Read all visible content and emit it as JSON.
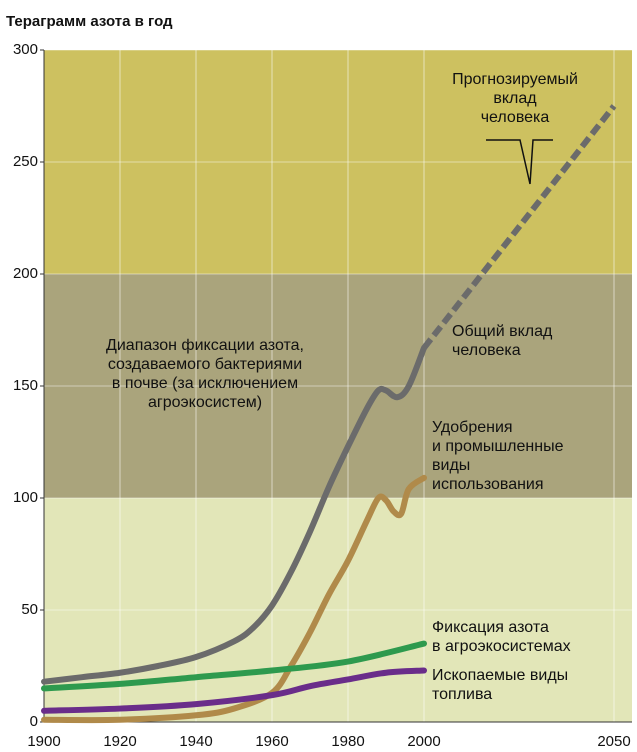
{
  "chart_data": {
    "type": "line",
    "title": "Тераграмм азота в год",
    "xlim": [
      1900,
      2050
    ],
    "xticks": [
      1900,
      1920,
      1940,
      1960,
      1980,
      2000,
      2050
    ],
    "ylim": [
      0,
      300
    ],
    "yticks": [
      0,
      50,
      100,
      150,
      200,
      250,
      300
    ],
    "grid": true,
    "bands": [
      {
        "range": [
          200,
          300
        ],
        "color": "#cdc160"
      },
      {
        "range": [
          100,
          200
        ],
        "color": "#aaa47c",
        "label": "Диапазон фиксации азота,\nсоздаваемого бактериями\nв почве (за исключением\nагроэкосистем)"
      },
      {
        "range": [
          0,
          100
        ],
        "color": "#e2e6b8"
      }
    ],
    "series": [
      {
        "name": "Прогнозируемый\nвклад\nчеловека",
        "color": "#6b6b6b",
        "dashed": true,
        "x": [
          2000,
          2050
        ],
        "values": [
          167,
          275
        ]
      },
      {
        "name": "Общий вклад\nчеловека",
        "color": "#6b6b6b",
        "x": [
          1900,
          1910,
          1920,
          1930,
          1940,
          1950,
          1955,
          1960,
          1965,
          1970,
          1975,
          1980,
          1985,
          1988,
          1990,
          1993,
          1996,
          2000
        ],
        "values": [
          18,
          20,
          22,
          25,
          29,
          36,
          42,
          52,
          67,
          85,
          105,
          123,
          140,
          148,
          148,
          145,
          150,
          167
        ]
      },
      {
        "name": "Удобрения\nи промышленные\nвиды\nиспользования",
        "color": "#b08a4a",
        "x": [
          1900,
          1920,
          1940,
          1950,
          1960,
          1965,
          1970,
          1975,
          1980,
          1985,
          1988,
          1990,
          1992,
          1994,
          1996,
          2000
        ],
        "values": [
          1,
          1,
          3,
          6,
          13,
          25,
          40,
          57,
          72,
          90,
          100,
          99,
          94,
          93,
          104,
          109
        ]
      },
      {
        "name": "Фиксация азота\nв агроэкосистемах",
        "color": "#2e9a4e",
        "x": [
          1900,
          1920,
          1940,
          1960,
          1980,
          2000
        ],
        "values": [
          15,
          17,
          20,
          23,
          27,
          35
        ]
      },
      {
        "name": "Ископаемые виды\nтоплива",
        "color": "#6a2d8a",
        "x": [
          1900,
          1920,
          1940,
          1960,
          1970,
          1980,
          1990,
          2000
        ],
        "values": [
          5,
          6,
          8,
          12,
          16,
          19,
          22,
          23
        ]
      }
    ]
  }
}
